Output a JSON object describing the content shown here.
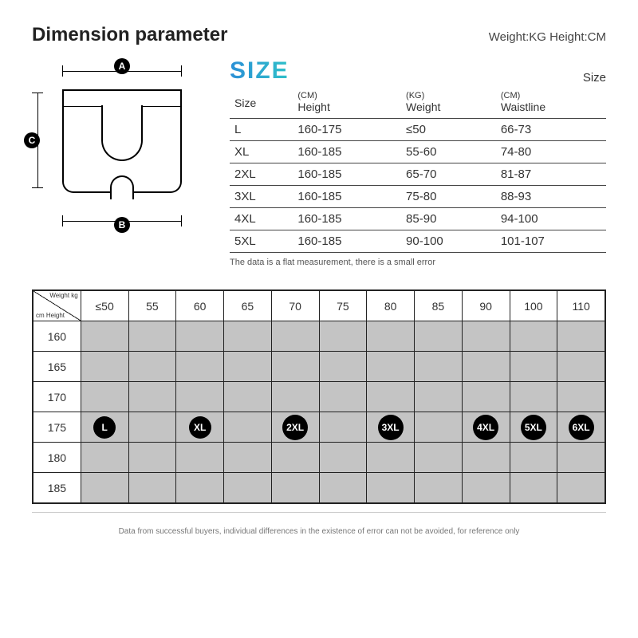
{
  "header": {
    "title": "Dimension parameter",
    "units": "Weight:KG  Height:CM"
  },
  "diagram": {
    "labels": {
      "a": "A",
      "b": "B",
      "c": "C"
    }
  },
  "size_word": "SIZE",
  "size_small": "Size",
  "size_table": {
    "columns": [
      {
        "sub": "",
        "label": "Size"
      },
      {
        "sub": "(CM)",
        "label": "Height"
      },
      {
        "sub": "(KG)",
        "label": "Weight"
      },
      {
        "sub": "(CM)",
        "label": "Waistline"
      }
    ],
    "rows": [
      [
        "L",
        "160-175",
        "≤50",
        "66-73"
      ],
      [
        "XL",
        "160-185",
        "55-60",
        "74-80"
      ],
      [
        "2XL",
        "160-185",
        "65-70",
        "81-87"
      ],
      [
        "3XL",
        "160-185",
        "75-80",
        "88-93"
      ],
      [
        "4XL",
        "160-185",
        "85-90",
        "94-100"
      ],
      [
        "5XL",
        "160-185",
        "90-100",
        "101-107"
      ]
    ],
    "note": "The data is a flat measurement, there is a small error"
  },
  "matrix": {
    "corner": {
      "weight_label": "Weight kg",
      "height_label": "cm Height"
    },
    "weights": [
      "≤50",
      "55",
      "60",
      "65",
      "70",
      "75",
      "80",
      "85",
      "90",
      "100",
      "110"
    ],
    "heights": [
      "160",
      "165",
      "170",
      "175",
      "180",
      "185"
    ],
    "shaded_color": "#c4c4c4",
    "dot_color": "#000000",
    "dot_text_color": "#ffffff",
    "dots_row_index": 3,
    "dots": [
      {
        "col": 0,
        "label": "L"
      },
      {
        "col": 2,
        "label": "XL"
      },
      {
        "col": 4,
        "label": "2XL"
      },
      {
        "col": 6,
        "label": "3XL"
      },
      {
        "col": 8,
        "label": "4XL"
      },
      {
        "col": 9,
        "label": "5XL"
      },
      {
        "col": 10,
        "label": "6XL"
      }
    ],
    "note": "Data from successful buyers, individual differences in the existence of error can not be avoided, for reference only"
  },
  "colors": {
    "border": "#222222",
    "text": "#333333",
    "gradient_start": "#2b8fd6",
    "gradient_end": "#2fc1c9"
  }
}
